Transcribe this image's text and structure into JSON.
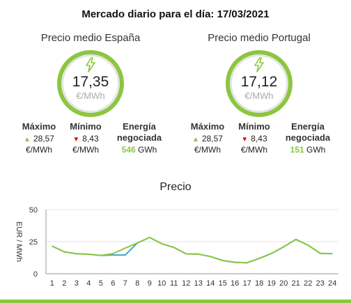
{
  "header": {
    "title": "Mercado diario para el día: 17/03/2021"
  },
  "spain": {
    "title": "Precio medio España",
    "price": "17,35",
    "unit": "€/MWh",
    "max_label": "Máximo",
    "max_value": "28,57",
    "max_unit": "€/MWh",
    "min_label": "Mínimo",
    "min_value": "8,43",
    "min_unit": "€/MWh",
    "energy_label_1": "Energía",
    "energy_label_2": "negociada",
    "energy_value": "546",
    "energy_unit": "GWh"
  },
  "portugal": {
    "title": "Precio medio Portugal",
    "price": "17,12",
    "unit": "€/MWh",
    "max_label": "Máximo",
    "max_value": "28,57",
    "max_unit": "€/MWh",
    "min_label": "Mínimo",
    "min_value": "8,43",
    "min_unit": "€/MWh",
    "energy_label_1": "Energía",
    "energy_label_2": "negociada",
    "energy_value": "151",
    "energy_unit": "GWh"
  },
  "colors": {
    "accent": "#8cc63f",
    "portugal_line": "#3aa8c8",
    "down": "#e01010"
  },
  "icons": {
    "price": "lightning-bolt-icon"
  },
  "chart_data": {
    "type": "line",
    "title": "Precio",
    "ylabel": "EUR / MWh",
    "xlabel": "",
    "ylim": [
      0,
      50
    ],
    "yticks": [
      0,
      25,
      50
    ],
    "x": [
      1,
      2,
      3,
      4,
      5,
      6,
      7,
      8,
      9,
      10,
      11,
      12,
      13,
      14,
      15,
      16,
      17,
      18,
      19,
      20,
      21,
      22,
      23,
      24
    ],
    "grid": "horizontal",
    "series": [
      {
        "values": [
          21.6,
          17.1,
          15.6,
          15.2,
          14.3,
          14.6,
          14.6,
          24.0,
          28.3,
          23.4,
          20.5,
          15.5,
          15.3,
          13.4,
          10.3,
          8.9,
          8.6,
          12.0,
          15.8,
          21.0,
          26.8,
          22.3,
          15.9,
          15.6
        ]
      },
      {
        "values": [
          21.6,
          17.1,
          15.6,
          15.2,
          14.3,
          15.7,
          20.0,
          24.0,
          28.3,
          23.4,
          20.5,
          15.5,
          15.3,
          13.4,
          10.3,
          8.9,
          8.6,
          12.0,
          15.8,
          21.0,
          26.8,
          22.3,
          15.9,
          15.6
        ]
      }
    ]
  }
}
